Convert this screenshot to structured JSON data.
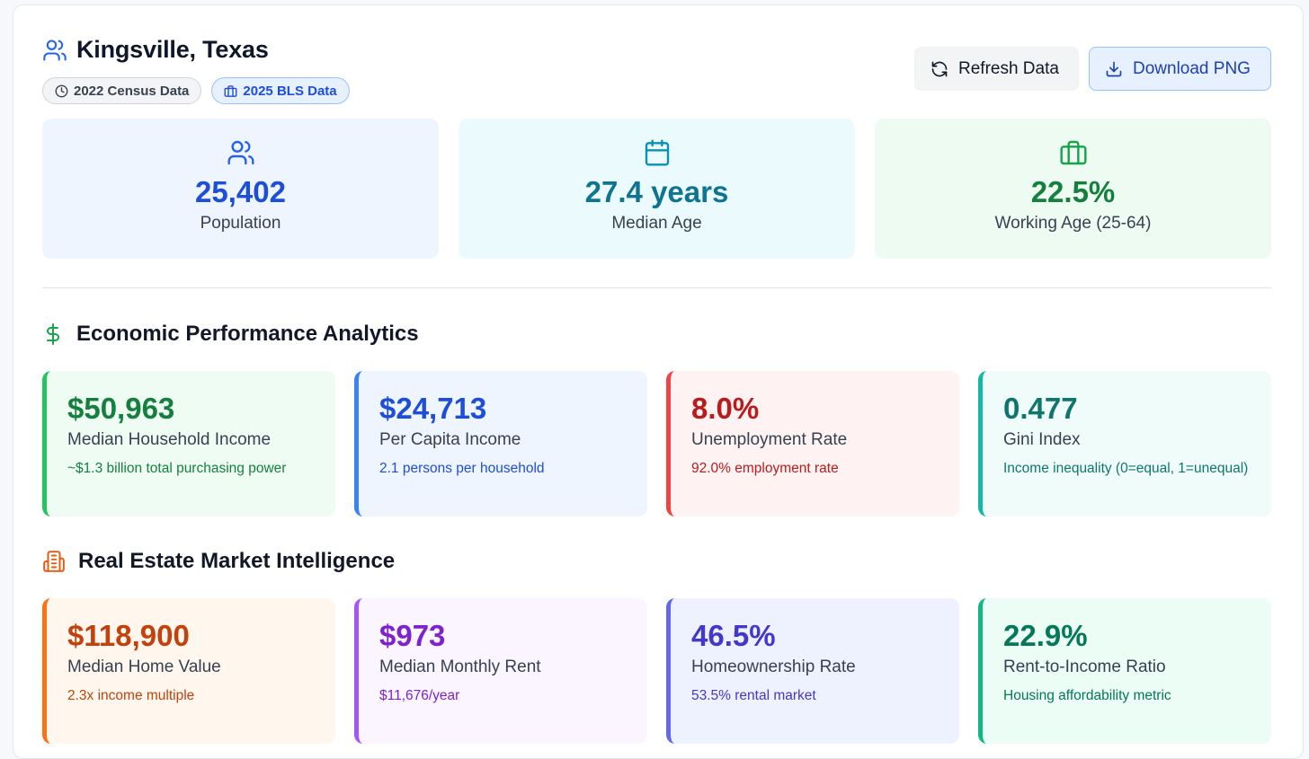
{
  "header": {
    "title": "Kingsville, Texas",
    "badges": [
      "2022 Census Data",
      "2025 BLS Data"
    ],
    "refresh_label": "Refresh Data",
    "download_label": "Download PNG"
  },
  "stats": [
    {
      "value": "25,402",
      "label": "Population",
      "icon": "users-icon",
      "color": "#1d4ed8",
      "bg": "#eef5ff"
    },
    {
      "value": "27.4 years",
      "label": "Median Age",
      "icon": "calendar-icon",
      "color": "#0e7490",
      "bg": "#ebfbfd"
    },
    {
      "value": "22.5%",
      "label": "Working Age (25-64)",
      "icon": "briefcase-icon",
      "color": "#15803d",
      "bg": "#edfbf2"
    }
  ],
  "economic": {
    "title": "Economic Performance Analytics",
    "icon": "dollar-icon",
    "cards": [
      {
        "value": "$50,963",
        "label": "Median Household Income",
        "sub": "~$1.3 billion total purchasing power",
        "color": "#15803d",
        "accent": "#22c55e",
        "bg": "#effcf4"
      },
      {
        "value": "$24,713",
        "label": "Per Capita Income",
        "sub": "2.1 persons per household",
        "color": "#1d4ed8",
        "accent": "#3b82f6",
        "bg": "#eef5ff"
      },
      {
        "value": "8.0%",
        "label": "Unemployment Rate",
        "sub": "92.0% employment rate",
        "color": "#b91c1c",
        "accent": "#ef4444",
        "bg": "#fef2f2"
      },
      {
        "value": "0.477",
        "label": "Gini Index",
        "sub": "Income inequality (0=equal, 1=unequal)",
        "color": "#0f766e",
        "accent": "#14b8a6",
        "bg": "#effcf9"
      }
    ]
  },
  "real_estate": {
    "title": "Real Estate Market Intelligence",
    "icon": "building-icon",
    "cards": [
      {
        "value": "$118,900",
        "label": "Median Home Value",
        "sub": "2.3x income multiple",
        "color": "#c2410c",
        "accent": "#f97316",
        "bg": "#fff7ed"
      },
      {
        "value": "$973",
        "label": "Median Monthly Rent",
        "sub": "$11,676/year",
        "color": "#7e22ce",
        "accent": "#a855f7",
        "bg": "#faf5ff"
      },
      {
        "value": "46.5%",
        "label": "Homeownership Rate",
        "sub": "53.5% rental market",
        "color": "#4338ca",
        "accent": "#6366f1",
        "bg": "#eef2ff"
      },
      {
        "value": "22.9%",
        "label": "Rent-to-Income Ratio",
        "sub": "Housing affordability metric",
        "color": "#047857",
        "accent": "#10b981",
        "bg": "#ecfdf5"
      }
    ]
  }
}
